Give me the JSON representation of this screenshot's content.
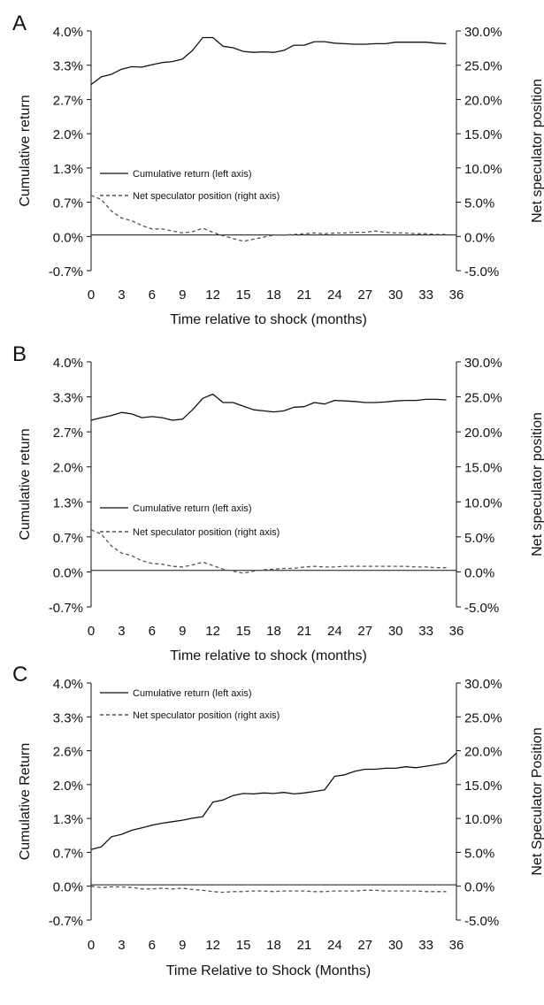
{
  "chart_data": [
    {
      "panel_label": "A",
      "type": "line",
      "xlabel": "Time relative to shock (months)",
      "ylabel": "Cumulative return",
      "y2label": "Net speculator position",
      "xlim": [
        0,
        36
      ],
      "ylim": [
        -0.7,
        4.0
      ],
      "y2lim": [
        -5.0,
        30.0
      ],
      "x_ticks": [
        "0",
        "3",
        "6",
        "9",
        "12",
        "15",
        "18",
        "21",
        "24",
        "27",
        "30",
        "33",
        "36"
      ],
      "y_ticks": [
        "4.0%",
        "3.3%",
        "2.7%",
        "2.0%",
        "1.3%",
        "0.7%",
        "0.0%",
        "-0.7%"
      ],
      "y2_ticks": [
        "30.0%",
        "25.0%",
        "20.0%",
        "15.0%",
        "10.0%",
        "5.0%",
        "0.0%",
        "-5.0%"
      ],
      "legend": [
        {
          "label": "Cumulative return (left axis)",
          "style": "solid"
        },
        {
          "label": "Net speculator position (right axis)",
          "style": "dashed"
        }
      ],
      "legend_placement": "middle-left",
      "series": [
        {
          "name": "Cumulative return (left axis)",
          "axis": "left",
          "color": "#111111",
          "dash": "solid",
          "x": [
            0,
            1,
            2,
            3,
            4,
            5,
            6,
            7,
            8,
            9,
            10,
            11,
            12,
            13,
            14,
            15,
            16,
            17,
            18,
            19,
            20,
            21,
            22,
            23,
            24,
            25,
            26,
            27,
            28,
            29,
            30,
            31,
            32,
            33,
            34,
            35
          ],
          "values": [
            2.95,
            3.1,
            3.15,
            3.25,
            3.3,
            3.29,
            3.34,
            3.38,
            3.4,
            3.45,
            3.62,
            3.87,
            3.87,
            3.7,
            3.67,
            3.6,
            3.58,
            3.59,
            3.58,
            3.62,
            3.72,
            3.72,
            3.79,
            3.79,
            3.76,
            3.75,
            3.74,
            3.74,
            3.75,
            3.75,
            3.78,
            3.78,
            3.78,
            3.78,
            3.76,
            3.75
          ]
        },
        {
          "name": "Net speculator position (right axis)",
          "axis": "right",
          "color": "#555555",
          "dash": "dashed",
          "x": [
            0,
            1,
            2,
            3,
            4,
            5,
            6,
            7,
            8,
            9,
            10,
            11,
            12,
            13,
            14,
            15,
            16,
            17,
            18,
            19,
            20,
            21,
            22,
            23,
            24,
            25,
            26,
            27,
            28,
            29,
            30,
            31,
            32,
            33,
            34,
            35
          ],
          "values": [
            6.0,
            5.4,
            3.7,
            2.7,
            2.3,
            1.6,
            1.1,
            1.1,
            0.8,
            0.5,
            0.7,
            1.2,
            0.6,
            0.1,
            -0.3,
            -0.7,
            -0.4,
            -0.1,
            0.2,
            0.2,
            0.3,
            0.4,
            0.5,
            0.4,
            0.5,
            0.5,
            0.6,
            0.6,
            0.8,
            0.6,
            0.5,
            0.5,
            0.4,
            0.4,
            0.3,
            0.3
          ]
        }
      ]
    },
    {
      "panel_label": "B",
      "type": "line",
      "xlabel": "Time relative to shock (months)",
      "ylabel": "Cumulative return",
      "y2label": "Net speculator position",
      "xlim": [
        0,
        36
      ],
      "ylim": [
        -0.7,
        4.0
      ],
      "y2lim": [
        -5.0,
        30.0
      ],
      "x_ticks": [
        "0",
        "3",
        "6",
        "9",
        "12",
        "15",
        "18",
        "21",
        "24",
        "27",
        "30",
        "33",
        "36"
      ],
      "y_ticks": [
        "4.0%",
        "3.3%",
        "2.7%",
        "2.0%",
        "1.3%",
        "0.7%",
        "0.0%",
        "-0.7%"
      ],
      "y2_ticks": [
        "30.0%",
        "25.0%",
        "20.0%",
        "15.0%",
        "10.0%",
        "5.0%",
        "0.0%",
        "-5.0%"
      ],
      "legend": [
        {
          "label": "Cumulative return (left axis)",
          "style": "solid"
        },
        {
          "label": "Net speculator position (right axis)",
          "style": "dashed"
        }
      ],
      "legend_placement": "middle-left",
      "series": [
        {
          "name": "Cumulative return (left axis)",
          "axis": "left",
          "color": "#111111",
          "dash": "solid",
          "x": [
            0,
            1,
            2,
            3,
            4,
            5,
            6,
            7,
            8,
            9,
            10,
            11,
            12,
            13,
            14,
            15,
            16,
            17,
            18,
            19,
            20,
            21,
            22,
            23,
            24,
            25,
            26,
            27,
            28,
            29,
            30,
            31,
            32,
            33,
            34,
            35
          ],
          "values": [
            2.88,
            2.93,
            2.97,
            3.03,
            3.0,
            2.93,
            2.95,
            2.93,
            2.88,
            2.9,
            3.08,
            3.3,
            3.38,
            3.22,
            3.22,
            3.15,
            3.08,
            3.06,
            3.04,
            3.06,
            3.13,
            3.14,
            3.22,
            3.19,
            3.26,
            3.25,
            3.24,
            3.22,
            3.22,
            3.23,
            3.25,
            3.26,
            3.26,
            3.28,
            3.28,
            3.27
          ]
        },
        {
          "name": "Net speculator position (right axis)",
          "axis": "right",
          "color": "#555555",
          "dash": "dashed",
          "x": [
            0,
            1,
            2,
            3,
            4,
            5,
            6,
            7,
            8,
            9,
            10,
            11,
            12,
            13,
            14,
            15,
            16,
            17,
            18,
            19,
            20,
            21,
            22,
            23,
            24,
            25,
            26,
            27,
            28,
            29,
            30,
            31,
            32,
            33,
            34,
            35
          ],
          "values": [
            6.0,
            5.4,
            3.7,
            2.7,
            2.3,
            1.6,
            1.2,
            1.1,
            0.8,
            0.7,
            1.0,
            1.4,
            0.9,
            0.4,
            0.1,
            -0.2,
            0.1,
            0.3,
            0.4,
            0.5,
            0.5,
            0.7,
            0.8,
            0.7,
            0.7,
            0.8,
            0.8,
            0.8,
            0.8,
            0.8,
            0.8,
            0.8,
            0.7,
            0.7,
            0.6,
            0.6
          ]
        }
      ]
    },
    {
      "panel_label": "C",
      "type": "line",
      "xlabel": "Time Relative to Shock (Months)",
      "ylabel": "Cumulative Return",
      "y2label": "Net Speculator Position",
      "xlim": [
        0,
        36
      ],
      "ylim": [
        -0.7,
        4.0
      ],
      "y2lim": [
        -5.0,
        30.0
      ],
      "x_ticks": [
        "0",
        "3",
        "6",
        "9",
        "12",
        "15",
        "18",
        "21",
        "24",
        "27",
        "30",
        "33",
        "36"
      ],
      "y_ticks": [
        "4.0%",
        "3.3%",
        "2.6%",
        "2.0%",
        "1.3%",
        "0.7%",
        "0.0%",
        "-0.7%"
      ],
      "y2_ticks": [
        "30.0%",
        "25.0%",
        "20.0%",
        "15.0%",
        "10.0%",
        "5.0%",
        "0.0%",
        "-5.0%"
      ],
      "legend": [
        {
          "label": "Cumulative return (left axis)",
          "style": "solid"
        },
        {
          "label": "Net speculator position (right axis)",
          "style": "dashed"
        }
      ],
      "legend_placement": "top-left",
      "series": [
        {
          "name": "Cumulative return (left axis)",
          "axis": "left",
          "color": "#111111",
          "dash": "solid",
          "x": [
            0,
            1,
            2,
            3,
            4,
            5,
            6,
            7,
            8,
            9,
            10,
            11,
            12,
            13,
            14,
            15,
            16,
            17,
            18,
            19,
            20,
            21,
            22,
            23,
            24,
            25,
            26,
            27,
            28,
            29,
            30,
            31,
            32,
            33,
            34,
            35,
            36
          ],
          "values": [
            0.7,
            0.75,
            0.95,
            1.0,
            1.08,
            1.13,
            1.18,
            1.22,
            1.25,
            1.28,
            1.32,
            1.35,
            1.64,
            1.68,
            1.77,
            1.81,
            1.8,
            1.82,
            1.81,
            1.83,
            1.8,
            1.82,
            1.85,
            1.88,
            2.15,
            2.18,
            2.25,
            2.29,
            2.29,
            2.31,
            2.31,
            2.34,
            2.32,
            2.35,
            2.38,
            2.42,
            2.61
          ]
        },
        {
          "name": "Net speculator position (right axis)",
          "axis": "right",
          "color": "#555555",
          "dash": "dashed",
          "x": [
            0,
            1,
            2,
            3,
            4,
            5,
            6,
            7,
            8,
            9,
            10,
            11,
            12,
            13,
            14,
            15,
            16,
            17,
            18,
            19,
            20,
            21,
            22,
            23,
            24,
            25,
            26,
            27,
            28,
            29,
            30,
            31,
            32,
            33,
            34,
            35
          ],
          "values": [
            0.0,
            -0.2,
            -0.1,
            -0.1,
            -0.2,
            -0.4,
            -0.4,
            -0.3,
            -0.4,
            -0.3,
            -0.5,
            -0.6,
            -0.8,
            -0.9,
            -0.8,
            -0.8,
            -0.7,
            -0.7,
            -0.8,
            -0.7,
            -0.7,
            -0.7,
            -0.8,
            -0.8,
            -0.7,
            -0.7,
            -0.7,
            -0.6,
            -0.6,
            -0.7,
            -0.7,
            -0.7,
            -0.7,
            -0.8,
            -0.8,
            -0.8
          ]
        }
      ]
    }
  ]
}
